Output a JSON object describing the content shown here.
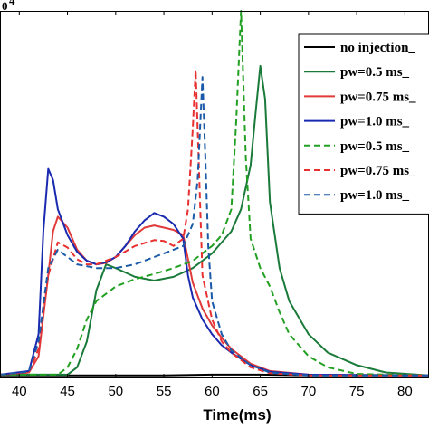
{
  "chart_data": {
    "type": "line",
    "title": "",
    "xlabel": "Time(ms)",
    "ylabel": "",
    "exponent_label": "0",
    "exponent_power": "4",
    "xlim": [
      38,
      82.5
    ],
    "ylim": [
      0,
      5
    ],
    "xticks": [
      "40",
      "45",
      "50",
      "55",
      "60",
      "65",
      "70",
      "75",
      "80"
    ],
    "grid": false,
    "legend_position": "top-right",
    "series": [
      {
        "name": "no injection_",
        "color": "#000000",
        "dash": "solid",
        "x": [
          38,
          45,
          50,
          55,
          60,
          65,
          70,
          75,
          82.5
        ],
        "y": [
          0.04,
          0.04,
          0.04,
          0.04,
          0.05,
          0.05,
          0.04,
          0.04,
          0.04
        ]
      },
      {
        "name": "pw=0.5 ms_",
        "color": "#1a7a3a",
        "dash": "solid",
        "x": [
          38,
          45,
          46,
          47,
          48,
          49,
          50,
          52,
          54,
          56,
          58,
          60,
          62,
          63,
          64,
          64.5,
          65,
          65.5,
          66,
          67,
          68,
          70,
          72,
          75,
          78,
          82.5
        ],
        "y": [
          0.05,
          0.05,
          0.15,
          0.5,
          1.2,
          1.55,
          1.5,
          1.38,
          1.33,
          1.38,
          1.5,
          1.7,
          2.0,
          2.3,
          2.9,
          3.6,
          4.25,
          3.8,
          2.4,
          1.5,
          1.05,
          0.6,
          0.35,
          0.18,
          0.08,
          0.04
        ]
      },
      {
        "name": "pw=0.75 ms_",
        "color": "#e03a3a",
        "dash": "solid",
        "x": [
          38,
          41,
          42,
          43,
          43.5,
          44,
          45,
          46,
          47,
          48,
          49,
          50,
          51,
          52,
          53,
          54,
          55,
          56,
          57,
          58,
          59,
          60,
          61,
          62,
          64,
          66,
          70,
          82.5
        ],
        "y": [
          0.05,
          0.08,
          0.3,
          1.4,
          2.0,
          2.2,
          2.05,
          1.75,
          1.6,
          1.55,
          1.57,
          1.65,
          1.8,
          1.95,
          2.05,
          2.08,
          2.05,
          2.02,
          1.95,
          1.3,
          0.95,
          0.72,
          0.55,
          0.4,
          0.2,
          0.1,
          0.05,
          0.04
        ]
      },
      {
        "name": "pw=1.0 ms_",
        "color": "#1a2ab0",
        "dash": "solid",
        "x": [
          38,
          41,
          42,
          42.5,
          43,
          43.5,
          44,
          45,
          46,
          47,
          48,
          49,
          50,
          51,
          52,
          53,
          54,
          55,
          56,
          57,
          57.5,
          58,
          59,
          60,
          61,
          62,
          64,
          66,
          70,
          82.5
        ],
        "y": [
          0.05,
          0.1,
          0.6,
          2.0,
          2.85,
          2.7,
          2.3,
          1.95,
          1.72,
          1.6,
          1.55,
          1.58,
          1.65,
          1.8,
          2.0,
          2.15,
          2.25,
          2.2,
          2.1,
          1.9,
          1.4,
          1.1,
          0.8,
          0.6,
          0.45,
          0.35,
          0.18,
          0.09,
          0.05,
          0.04
        ]
      },
      {
        "name": "pw=0.5 ms_",
        "color": "#22a022",
        "dash": "dashed",
        "x": [
          38,
          44,
          45,
          46,
          47,
          48,
          50,
          52,
          54,
          56,
          58,
          60,
          61,
          62,
          62.5,
          63,
          63.5,
          64,
          65,
          66,
          67,
          68,
          70,
          72,
          75,
          82.5
        ],
        "y": [
          0.05,
          0.05,
          0.15,
          0.4,
          0.8,
          1.05,
          1.25,
          1.35,
          1.42,
          1.5,
          1.6,
          1.8,
          1.95,
          2.3,
          3.5,
          5.0,
          3.0,
          1.9,
          1.5,
          1.25,
          0.9,
          0.6,
          0.3,
          0.15,
          0.06,
          0.04
        ]
      },
      {
        "name": "pw=0.75 ms_",
        "color": "#e83030",
        "dash": "dashed",
        "x": [
          38,
          41,
          42,
          43,
          44,
          45,
          46,
          47,
          48,
          50,
          52,
          54,
          55,
          56,
          57,
          57.5,
          58,
          58.3,
          58.7,
          59,
          60,
          61,
          62,
          64,
          66,
          70,
          82.5
        ],
        "y": [
          0.05,
          0.08,
          0.4,
          1.4,
          1.85,
          1.78,
          1.62,
          1.55,
          1.55,
          1.65,
          1.8,
          1.88,
          1.87,
          1.8,
          1.9,
          2.3,
          3.4,
          4.2,
          2.6,
          1.4,
          0.8,
          0.5,
          0.35,
          0.15,
          0.07,
          0.04,
          0.04
        ]
      },
      {
        "name": "pw=1.0 ms_",
        "color": "#1a5aa8",
        "dash": "dashed",
        "x": [
          38,
          41,
          42,
          43,
          44,
          45,
          46,
          48,
          50,
          52,
          54,
          56,
          57,
          58,
          58.5,
          59,
          59.3,
          59.6,
          60,
          61,
          62,
          64,
          66,
          70,
          82.5
        ],
        "y": [
          0.05,
          0.09,
          0.5,
          1.5,
          1.75,
          1.65,
          1.55,
          1.5,
          1.5,
          1.55,
          1.65,
          1.75,
          1.8,
          2.1,
          2.7,
          4.1,
          3.0,
          1.8,
          1.05,
          0.6,
          0.38,
          0.18,
          0.08,
          0.04,
          0.04
        ]
      }
    ]
  }
}
